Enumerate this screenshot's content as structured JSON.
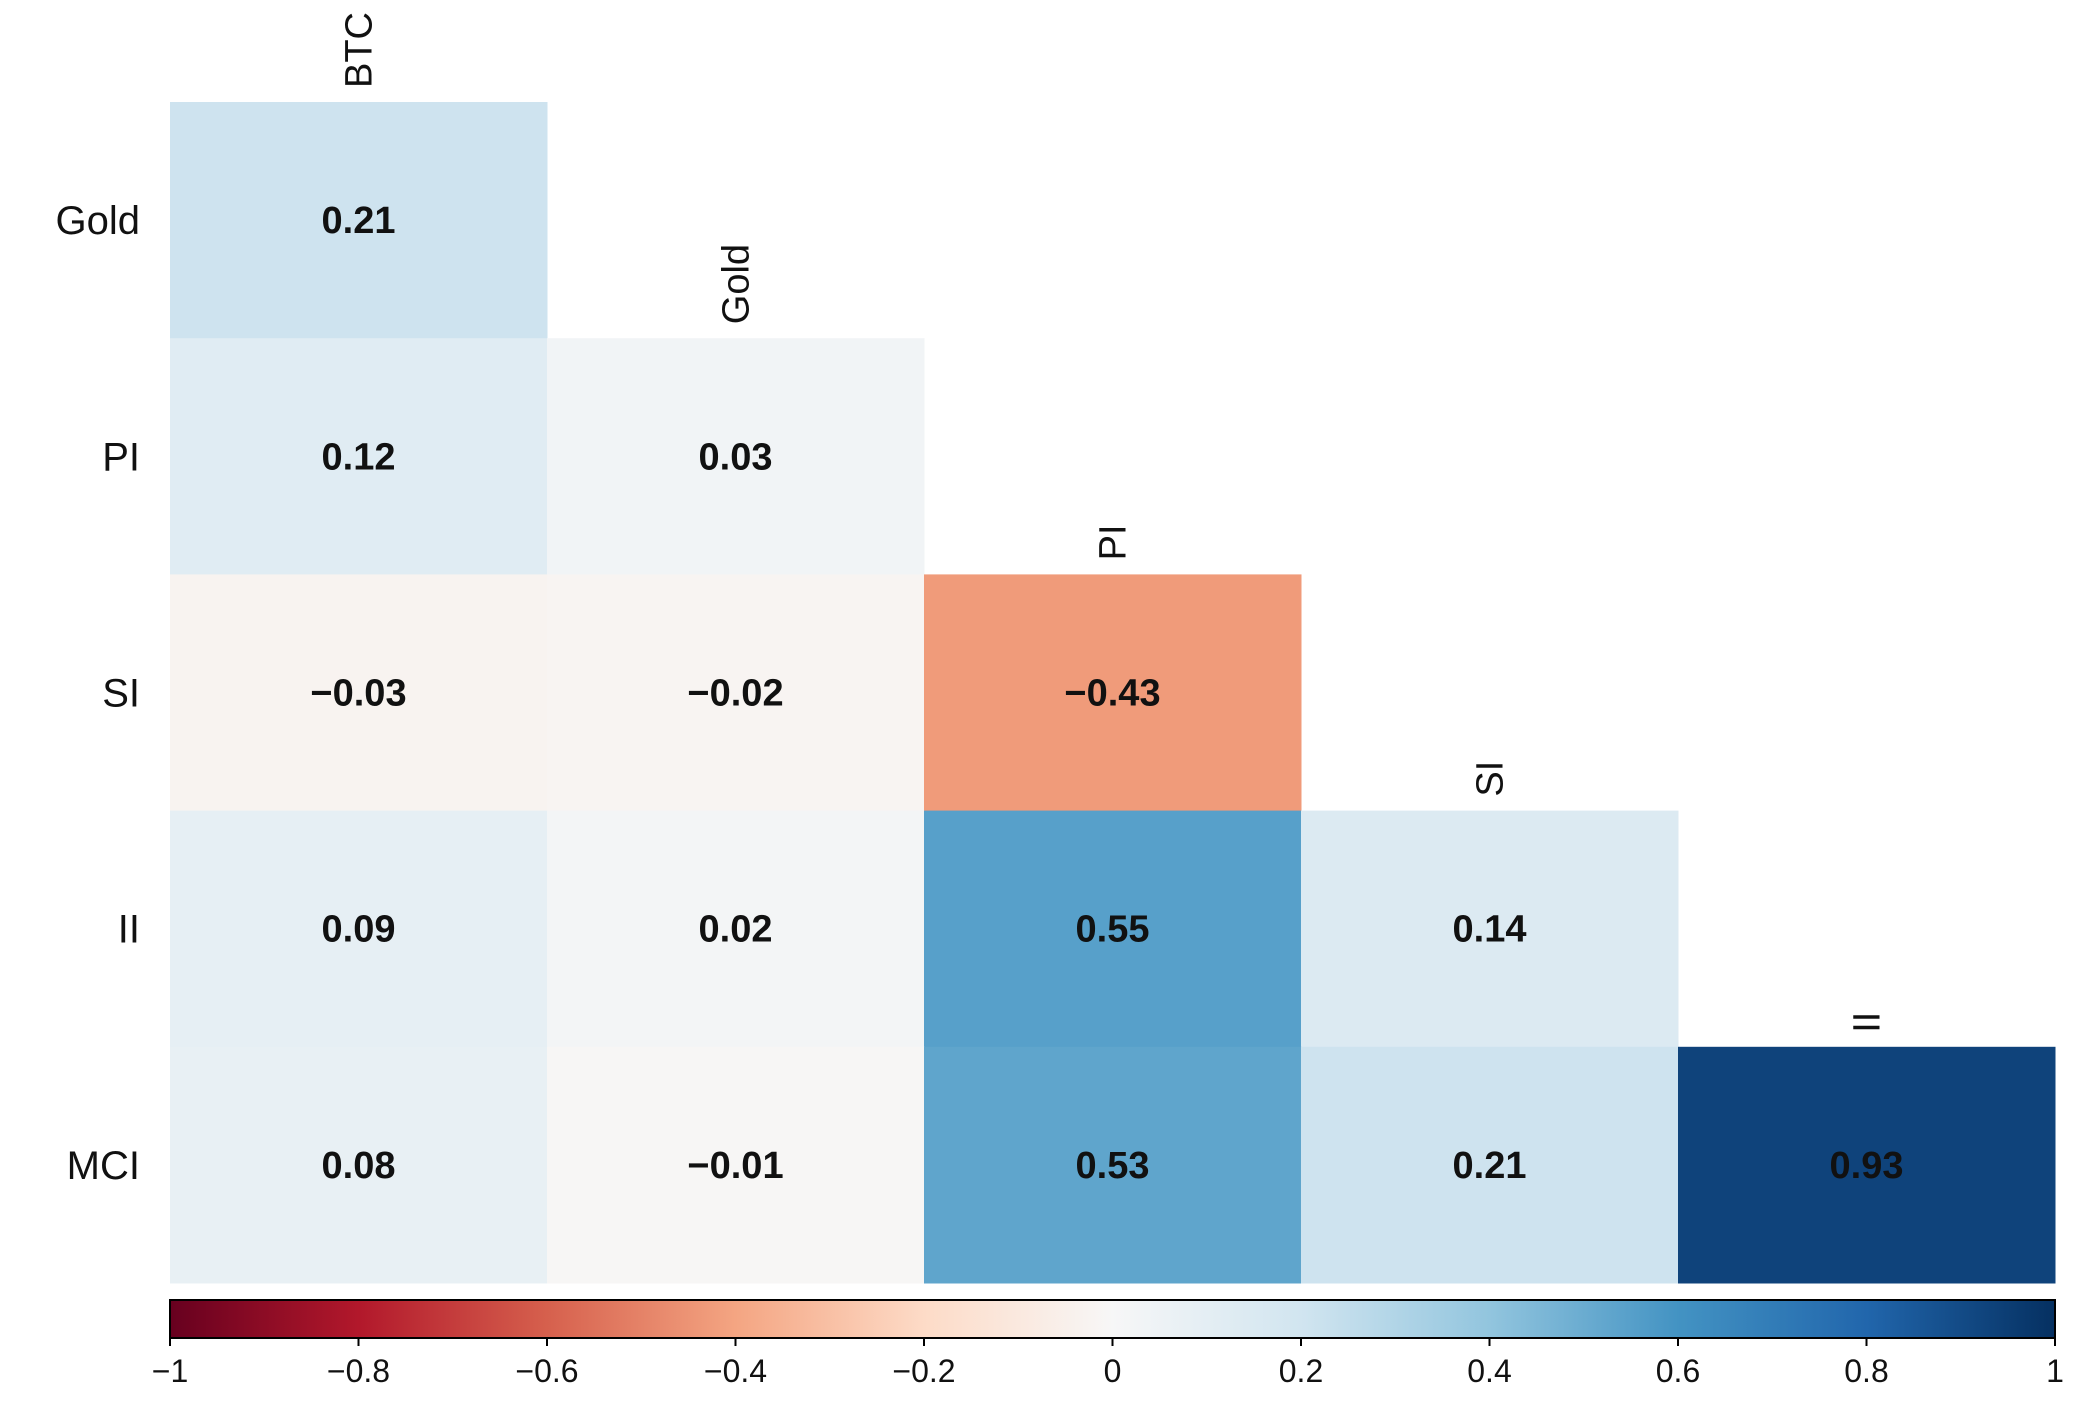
{
  "chart_data": {
    "type": "heatmap",
    "title": "",
    "variables": [
      "BTC",
      "Gold",
      "PI",
      "SI",
      "II",
      "MCI"
    ],
    "row_labels": [
      "Gold",
      "PI",
      "SI",
      "II",
      "MCI"
    ],
    "column_labels": [
      "BTC",
      "Gold",
      "PI",
      "SI",
      "II"
    ],
    "cells": [
      {
        "row": "Gold",
        "col": "BTC",
        "value": 0.21,
        "label": "0.21"
      },
      {
        "row": "PI",
        "col": "BTC",
        "value": 0.12,
        "label": "0.12"
      },
      {
        "row": "PI",
        "col": "Gold",
        "value": 0.03,
        "label": "0.03"
      },
      {
        "row": "SI",
        "col": "BTC",
        "value": -0.03,
        "label": "-0.03"
      },
      {
        "row": "SI",
        "col": "Gold",
        "value": -0.02,
        "label": "-0.02"
      },
      {
        "row": "SI",
        "col": "PI",
        "value": -0.43,
        "label": "-0.43"
      },
      {
        "row": "II",
        "col": "BTC",
        "value": 0.09,
        "label": "0.09"
      },
      {
        "row": "II",
        "col": "Gold",
        "value": 0.02,
        "label": "0.02"
      },
      {
        "row": "II",
        "col": "PI",
        "value": 0.55,
        "label": "0.55"
      },
      {
        "row": "II",
        "col": "SI",
        "value": 0.14,
        "label": "0.14"
      },
      {
        "row": "MCI",
        "col": "BTC",
        "value": 0.08,
        "label": "0.08"
      },
      {
        "row": "MCI",
        "col": "Gold",
        "value": -0.01,
        "label": "-0.01"
      },
      {
        "row": "MCI",
        "col": "PI",
        "value": 0.53,
        "label": "0.53"
      },
      {
        "row": "MCI",
        "col": "SI",
        "value": 0.21,
        "label": "0.21"
      },
      {
        "row": "MCI",
        "col": "II",
        "value": 0.93,
        "label": "0.93"
      }
    ],
    "colorbar": {
      "range": [
        -1,
        1
      ],
      "ticks": [
        -1,
        -0.8,
        -0.6,
        -0.4,
        -0.2,
        0,
        0.2,
        0.4,
        0.6,
        0.8,
        1
      ],
      "tick_labels": [
        "-1",
        "-0.8",
        "-0.6",
        "-0.4",
        "-0.2",
        "0",
        "0.2",
        "0.4",
        "0.6",
        "0.8",
        "1"
      ],
      "colors": [
        "#67001f",
        "#b2182b",
        "#d6604d",
        "#f4a582",
        "#fddbc7",
        "#f7f7f7",
        "#d1e5f0",
        "#92c5de",
        "#4393c3",
        "#2166ac",
        "#053061"
      ]
    }
  }
}
